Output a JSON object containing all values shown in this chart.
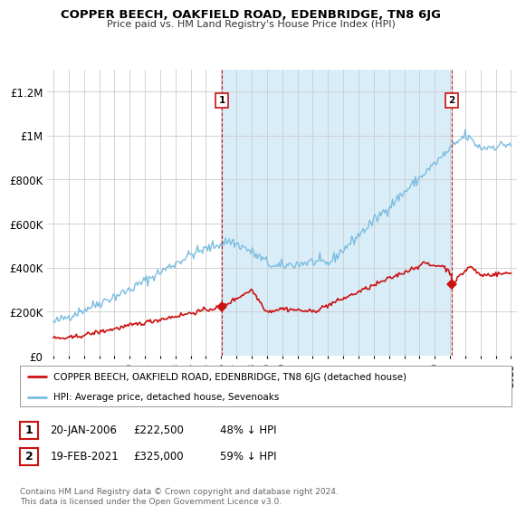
{
  "title": "COPPER BEECH, OAKFIELD ROAD, EDENBRIDGE, TN8 6JG",
  "subtitle": "Price paid vs. HM Land Registry's House Price Index (HPI)",
  "xlim": [
    1994.6,
    2025.4
  ],
  "ylim": [
    0,
    1300000
  ],
  "yticks": [
    0,
    200000,
    400000,
    600000,
    800000,
    1000000,
    1200000
  ],
  "ytick_labels": [
    "£0",
    "£200K",
    "£400K",
    "£600K",
    "£800K",
    "£1M",
    "£1.2M"
  ],
  "xtick_years": [
    1995,
    1996,
    1997,
    1998,
    1999,
    2000,
    2001,
    2002,
    2003,
    2004,
    2005,
    2006,
    2007,
    2008,
    2009,
    2010,
    2011,
    2012,
    2013,
    2014,
    2015,
    2016,
    2017,
    2018,
    2019,
    2020,
    2021,
    2022,
    2023,
    2024,
    2025
  ],
  "hpi_color": "#7bbde0",
  "hpi_fill_color": "#d8edf8",
  "price_color": "#cc1111",
  "vline_color": "#cc1111",
  "transaction1_year": 2006.05,
  "transaction1_price": 222500,
  "transaction1_label": "1",
  "transaction2_year": 2021.12,
  "transaction2_price": 325000,
  "transaction2_label": "2",
  "legend_price_label": "COPPER BEECH, OAKFIELD ROAD, EDENBRIDGE, TN8 6JG (detached house)",
  "legend_hpi_label": "HPI: Average price, detached house, Sevenoaks",
  "annotation1_date": "20-JAN-2006",
  "annotation1_price": "£222,500",
  "annotation1_pct": "48% ↓ HPI",
  "annotation2_date": "19-FEB-2021",
  "annotation2_price": "£325,000",
  "annotation2_pct": "59% ↓ HPI",
  "footer": "Contains HM Land Registry data © Crown copyright and database right 2024.\nThis data is licensed under the Open Government Licence v3.0.",
  "bg_color": "#ffffff",
  "grid_color": "#cccccc"
}
